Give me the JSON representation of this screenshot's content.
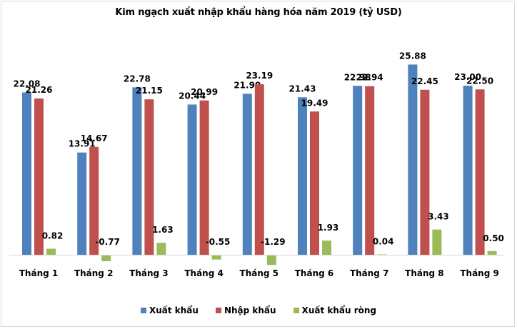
{
  "chart_data": {
    "type": "bar",
    "title": "Kim ngạch xuất nhập khẩu hàng hóa năm 2019 (tỷ USD)",
    "xlabel": "",
    "ylabel": "",
    "grid": false,
    "legend_position": "bottom",
    "categories": [
      "Tháng 1",
      "Tháng 2",
      "Tháng 3",
      "Tháng 4",
      "Tháng 5",
      "Tháng 6",
      "Tháng 7",
      "Tháng 8",
      "Tháng 9"
    ],
    "series": [
      {
        "name": "Xuất khẩu",
        "color": "#4f81bd",
        "values": [
          22.08,
          13.91,
          22.78,
          20.44,
          21.9,
          21.43,
          22.98,
          25.88,
          23.0
        ],
        "labels": [
          "22.08",
          "13.91",
          "22.78",
          "20.44",
          "21.90",
          "21.43",
          "22.98",
          "25.88",
          "23.00"
        ]
      },
      {
        "name": "Nhập khẩu",
        "color": "#c0504d",
        "values": [
          21.26,
          14.67,
          21.15,
          20.99,
          23.19,
          19.49,
          22.94,
          22.45,
          22.5
        ],
        "labels": [
          "21.26",
          "14.67",
          "21.15",
          "20.99",
          "23.19",
          "19.49",
          "22.94",
          "22.45",
          "22.50"
        ]
      },
      {
        "name": "Xuất khẩu ròng",
        "color": "#9bbb59",
        "values": [
          0.82,
          -0.77,
          1.63,
          -0.55,
          -1.29,
          1.93,
          0.04,
          3.43,
          0.5
        ],
        "labels": [
          "0.82",
          "-0.77",
          "1.63",
          "-0.55",
          "-1.29",
          "1.93",
          "0.04",
          "3.43",
          "0.50"
        ]
      }
    ],
    "axis_line_color": "#d9d9d9"
  },
  "legend": {
    "items": [
      {
        "label": "Xuất khẩu",
        "color": "#4f81bd"
      },
      {
        "label": "Nhập khẩu",
        "color": "#c0504d"
      },
      {
        "label": "Xuất khẩu ròng",
        "color": "#9bbb59"
      }
    ]
  }
}
